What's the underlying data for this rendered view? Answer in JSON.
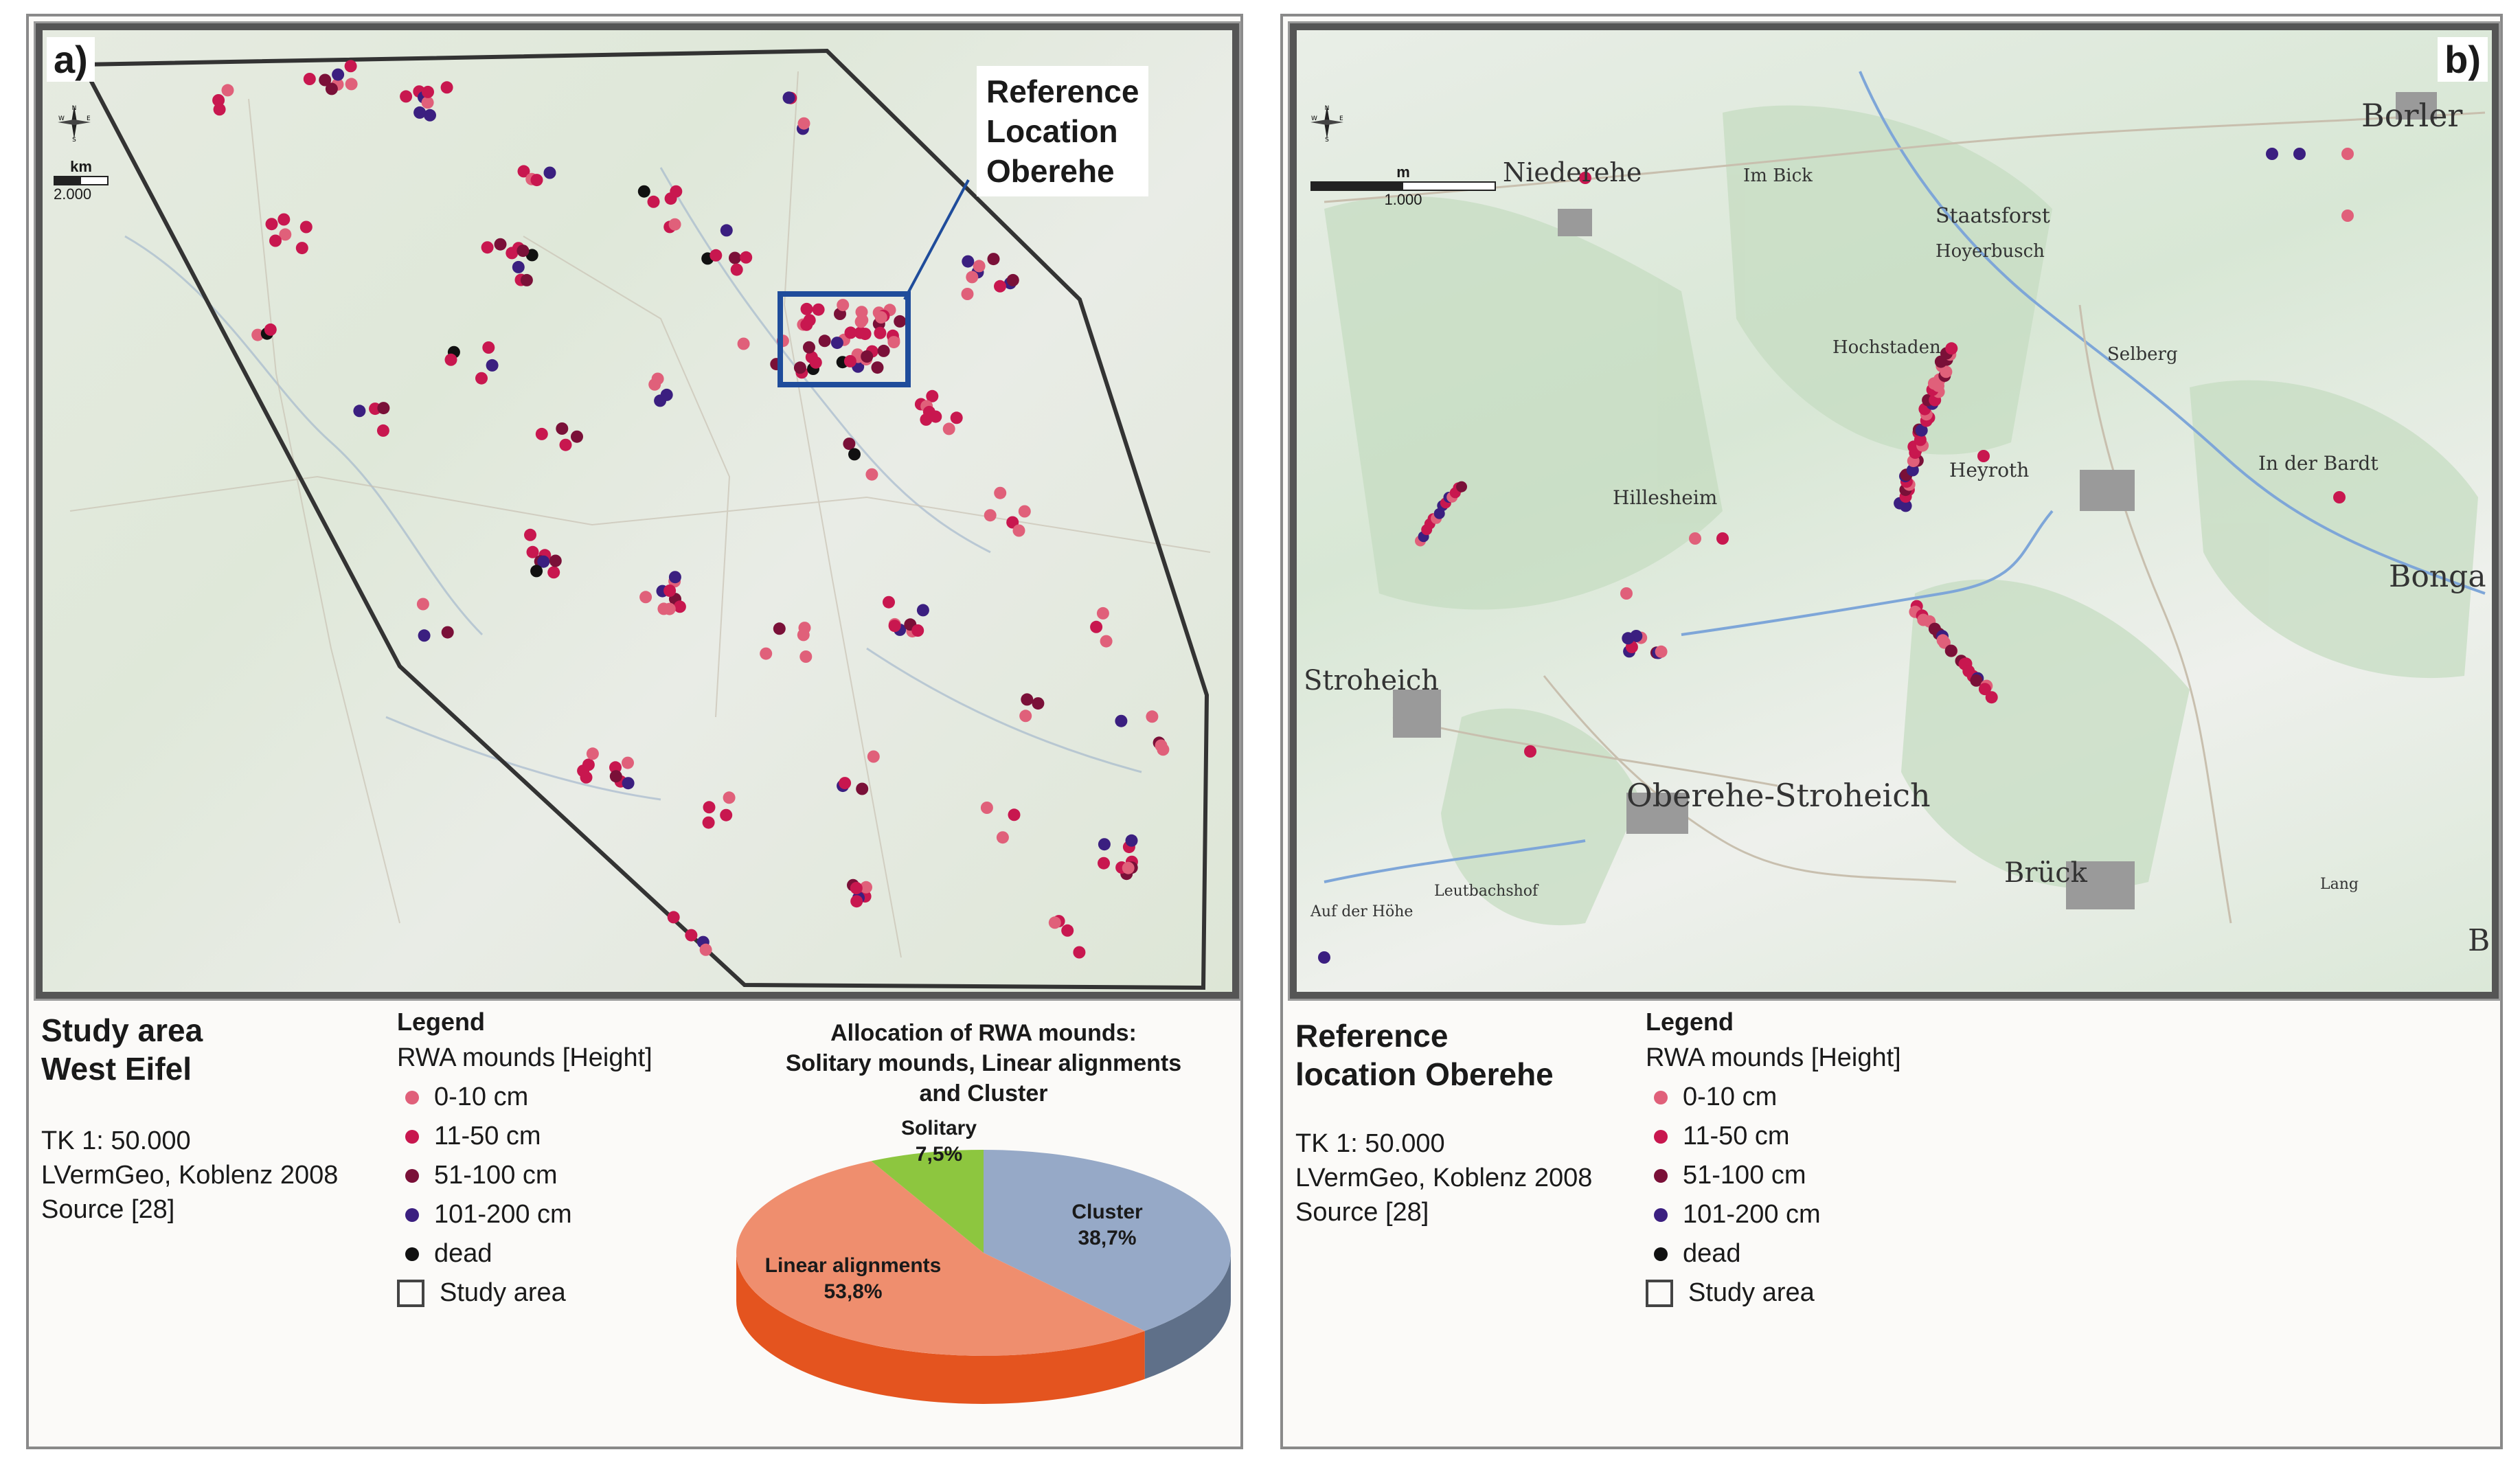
{
  "colors": {
    "c0_10": "#e0607a",
    "c11_50": "#c8174f",
    "c51_100": "#7a1038",
    "c101_200": "#3b1f80",
    "dead": "#111111",
    "boundary": "#333333",
    "highlight": "#1f4c9b",
    "pie_cluster": "#96a9c7",
    "pie_cluster_side": "#5f7089",
    "pie_linear": "#ef8e6e",
    "pie_linear_side": "#e4541f",
    "pie_solitary": "#8dc63f"
  },
  "panel_a": {
    "tag": "a)",
    "compass": {
      "n": "N",
      "s": "S",
      "e": "E",
      "w": "W"
    },
    "scale": {
      "unit": "km",
      "value": "2.000"
    },
    "callout": [
      "Reference",
      "Location",
      "Oberehe"
    ],
    "title": [
      "Study area",
      "West Eifel"
    ],
    "meta": [
      "TK 1: 50.000",
      "LVermGeo, Koblenz 2008",
      "Source [28]"
    ],
    "legend": {
      "title": "Legend",
      "subtitle": "RWA mounds [Height]",
      "items": [
        {
          "label": "0-10 cm",
          "color": "#e0607a"
        },
        {
          "label": "11-50 cm",
          "color": "#c8174f"
        },
        {
          "label": "51-100 cm",
          "color": "#7a1038"
        },
        {
          "label": "101-200 cm",
          "color": "#3b1f80"
        },
        {
          "label": "dead",
          "color": "#111111"
        }
      ],
      "area_label": "Study area"
    },
    "pie": {
      "title": [
        "Allocation of RWA mounds:",
        "Solitary mounds, Linear alignments",
        "and Cluster"
      ],
      "slices": [
        {
          "name": "Cluster",
          "value_label": "38,7%",
          "value": 38.7
        },
        {
          "name": "Linear alignments",
          "value_label": "53,8%",
          "value": 53.8
        },
        {
          "name": "Solitary",
          "value_label": "7,5%",
          "value": 7.5
        }
      ]
    }
  },
  "panel_b": {
    "tag": "b)",
    "compass": {
      "n": "N",
      "s": "S",
      "e": "E",
      "w": "W"
    },
    "scale": {
      "unit": "m",
      "value": "1.000"
    },
    "place_names": [
      "Borler",
      "Niederehe",
      "Staatsforst",
      "Hoyerbusch",
      "Im Bick",
      "Hochstaden",
      "Hillesheim",
      "Heyroth",
      "Selberg",
      "In der Bardt",
      "Bonga",
      "Stroheich",
      "Oberehe-Stroheich",
      "Brück",
      "Auf der Höhe",
      "Leutbachshof",
      "Lang",
      "B"
    ],
    "title": [
      "Reference",
      "location Oberehe"
    ],
    "meta": [
      "TK 1: 50.000",
      "LVermGeo, Koblenz 2008",
      "Source [28]"
    ],
    "legend": {
      "title": "Legend",
      "subtitle": "RWA mounds [Height]",
      "items": [
        {
          "label": "0-10 cm",
          "color": "#e0607a"
        },
        {
          "label": "11-50 cm",
          "color": "#c8174f"
        },
        {
          "label": "51-100 cm",
          "color": "#7a1038"
        },
        {
          "label": "101-200 cm",
          "color": "#3b1f80"
        },
        {
          "label": "dead",
          "color": "#111111"
        }
      ],
      "area_label": "Study area"
    }
  }
}
